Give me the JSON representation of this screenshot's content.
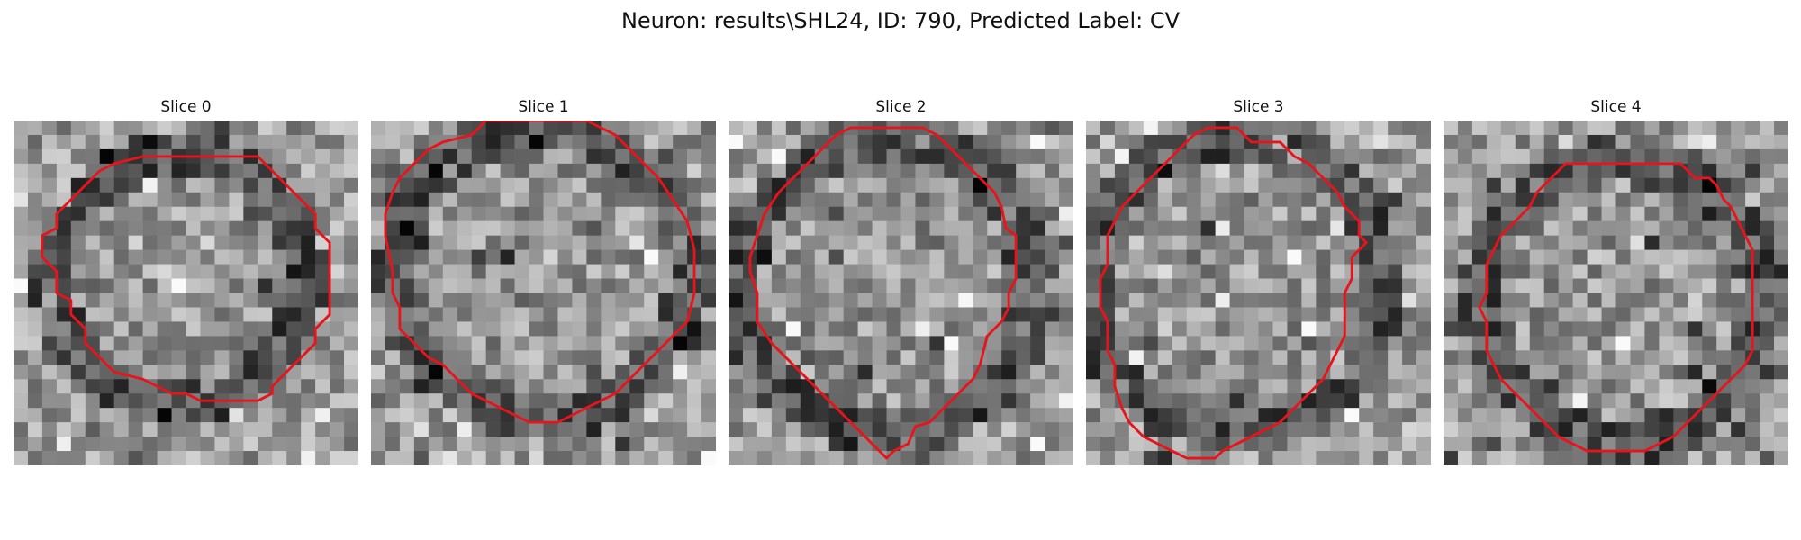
{
  "figure": {
    "title": "Neuron: results\\SHL24, ID: 790, Predicted Label: CV"
  },
  "panels": [
    {
      "title": "Slice 0",
      "contour": [
        [
          10,
          2.5
        ],
        [
          17,
          2.5
        ],
        [
          18,
          3.5
        ],
        [
          21,
          6.5
        ],
        [
          21,
          7.5
        ],
        [
          22,
          8.5
        ],
        [
          22,
          13.5
        ],
        [
          21,
          14.5
        ],
        [
          21,
          15.5
        ],
        [
          19,
          17.5
        ],
        [
          18,
          18.5
        ],
        [
          18,
          19
        ],
        [
          17,
          19.5
        ],
        [
          13,
          19.5
        ],
        [
          12,
          19
        ],
        [
          11,
          19
        ],
        [
          10,
          18.5
        ],
        [
          9,
          18
        ],
        [
          7,
          17.5
        ],
        [
          5,
          15.5
        ],
        [
          5,
          14.5
        ],
        [
          4,
          13.5
        ],
        [
          4,
          12.5
        ],
        [
          3,
          12
        ],
        [
          3,
          10.5
        ],
        [
          2,
          9.5
        ],
        [
          2,
          8
        ],
        [
          3,
          7.5
        ],
        [
          3,
          6.5
        ],
        [
          4,
          5.5
        ],
        [
          5,
          4.5
        ],
        [
          6,
          3.5
        ],
        [
          7,
          3
        ],
        [
          9,
          2.5
        ]
      ]
    },
    {
      "title": "Slice 1",
      "contour": [
        [
          8,
          0
        ],
        [
          7,
          1
        ],
        [
          5,
          1.5
        ],
        [
          4,
          2
        ],
        [
          3,
          3
        ],
        [
          2,
          4
        ],
        [
          1.5,
          5
        ],
        [
          1,
          6.5
        ],
        [
          1,
          8
        ],
        [
          1.3,
          9.5
        ],
        [
          1.5,
          10.5
        ],
        [
          1.5,
          12
        ],
        [
          2,
          13
        ],
        [
          2,
          14.5
        ],
        [
          3,
          15.5
        ],
        [
          4,
          16.5
        ],
        [
          5,
          17
        ],
        [
          6,
          18
        ],
        [
          7,
          19
        ],
        [
          8,
          19.5
        ],
        [
          9,
          20
        ],
        [
          10,
          20.5
        ],
        [
          11,
          21
        ],
        [
          12,
          21
        ],
        [
          13,
          21
        ],
        [
          14,
          20.5
        ],
        [
          15,
          20
        ],
        [
          16,
          19.5
        ],
        [
          17,
          19
        ],
        [
          18,
          18
        ],
        [
          19,
          17
        ],
        [
          20,
          16
        ],
        [
          21,
          15
        ],
        [
          22,
          14
        ],
        [
          22.5,
          12
        ],
        [
          22.5,
          9
        ],
        [
          22,
          7
        ],
        [
          21,
          5.5
        ],
        [
          20,
          4
        ],
        [
          19,
          3
        ],
        [
          18,
          2
        ],
        [
          17,
          1
        ],
        [
          16,
          0.5
        ],
        [
          15,
          0
        ]
      ]
    },
    {
      "title": "Slice 2",
      "contour": [
        [
          8.5,
          0.5
        ],
        [
          13.5,
          0.5
        ],
        [
          14.5,
          1
        ],
        [
          15.5,
          2
        ],
        [
          16.5,
          3
        ],
        [
          17.5,
          4
        ],
        [
          18.5,
          5
        ],
        [
          19,
          6
        ],
        [
          19.3,
          7.5
        ],
        [
          20,
          8
        ],
        [
          20,
          11
        ],
        [
          19.5,
          12
        ],
        [
          19.5,
          13
        ],
        [
          19,
          14
        ],
        [
          18,
          15
        ],
        [
          17.5,
          17
        ],
        [
          17,
          18
        ],
        [
          16,
          19
        ],
        [
          15,
          20
        ],
        [
          14,
          21
        ],
        [
          13,
          21.3
        ],
        [
          12.5,
          22.5
        ],
        [
          11.5,
          23
        ],
        [
          11,
          23.5
        ],
        [
          10,
          22.5
        ],
        [
          9,
          21.5
        ],
        [
          8,
          20.5
        ],
        [
          7,
          19.5
        ],
        [
          6,
          18.5
        ],
        [
          5,
          17.5
        ],
        [
          4,
          16.5
        ],
        [
          3,
          15.5
        ],
        [
          2,
          14
        ],
        [
          2,
          12
        ],
        [
          1.5,
          10.5
        ],
        [
          1.5,
          9.5
        ],
        [
          2,
          8
        ],
        [
          2.5,
          6.5
        ],
        [
          3.5,
          5
        ],
        [
          4.5,
          4
        ],
        [
          5.5,
          3
        ],
        [
          6.5,
          2
        ],
        [
          7.5,
          1
        ]
      ]
    },
    {
      "title": "Slice 3",
      "contour": [
        [
          8.5,
          0.5
        ],
        [
          10.5,
          0.5
        ],
        [
          11.5,
          1.5
        ],
        [
          13.5,
          1.5
        ],
        [
          14.5,
          2.5
        ],
        [
          15.5,
          3
        ],
        [
          16.5,
          4
        ],
        [
          17.5,
          5
        ],
        [
          18,
          6
        ],
        [
          19,
          7
        ],
        [
          19,
          8
        ],
        [
          19.5,
          8.5
        ],
        [
          19,
          9
        ],
        [
          18.5,
          9.5
        ],
        [
          18.5,
          11
        ],
        [
          18,
          12
        ],
        [
          18,
          15
        ],
        [
          17.5,
          16
        ],
        [
          17,
          17
        ],
        [
          16.5,
          18
        ],
        [
          15.5,
          19
        ],
        [
          14.5,
          20
        ],
        [
          13.5,
          21
        ],
        [
          12.5,
          21.5
        ],
        [
          11.5,
          22
        ],
        [
          10.5,
          22.5
        ],
        [
          9.5,
          23
        ],
        [
          9,
          23.5
        ],
        [
          7,
          23.5
        ],
        [
          6,
          23
        ],
        [
          5,
          22.5
        ],
        [
          4,
          22
        ],
        [
          3,
          21
        ],
        [
          2.5,
          20
        ],
        [
          2,
          18.5
        ],
        [
          2,
          17
        ],
        [
          1.5,
          16
        ],
        [
          1.5,
          14
        ],
        [
          1,
          13
        ],
        [
          1,
          11
        ],
        [
          1.5,
          10
        ],
        [
          1.5,
          8
        ],
        [
          2,
          7
        ],
        [
          2.5,
          6
        ],
        [
          3.5,
          5
        ],
        [
          4.5,
          4
        ],
        [
          5.5,
          3
        ],
        [
          6.5,
          2
        ],
        [
          7.5,
          1
        ]
      ]
    },
    {
      "title": "Slice 4",
      "contour": [
        [
          9,
          3
        ],
        [
          16.5,
          3
        ],
        [
          17.5,
          4
        ],
        [
          18.5,
          4
        ],
        [
          19,
          4.5
        ],
        [
          19.5,
          5.5
        ],
        [
          20,
          6
        ],
        [
          20.5,
          7
        ],
        [
          21,
          8
        ],
        [
          21.5,
          9
        ],
        [
          21.5,
          14
        ],
        [
          21.5,
          16
        ],
        [
          21,
          17
        ],
        [
          20,
          18
        ],
        [
          19,
          19
        ],
        [
          18,
          20
        ],
        [
          17,
          21
        ],
        [
          16,
          22
        ],
        [
          15,
          22.5
        ],
        [
          14,
          23
        ],
        [
          11,
          23
        ],
        [
          10,
          23
        ],
        [
          9,
          22.5
        ],
        [
          8,
          22
        ],
        [
          7,
          21
        ],
        [
          6,
          20
        ],
        [
          5,
          19
        ],
        [
          4,
          18
        ],
        [
          3.5,
          17
        ],
        [
          3,
          16
        ],
        [
          3,
          14
        ],
        [
          2.5,
          13
        ],
        [
          3,
          12
        ],
        [
          3,
          10
        ],
        [
          3.5,
          9
        ],
        [
          4,
          8
        ],
        [
          5,
          7
        ],
        [
          6,
          6
        ],
        [
          6.5,
          5
        ],
        [
          7.5,
          4
        ],
        [
          8.5,
          3
        ]
      ]
    }
  ]
}
